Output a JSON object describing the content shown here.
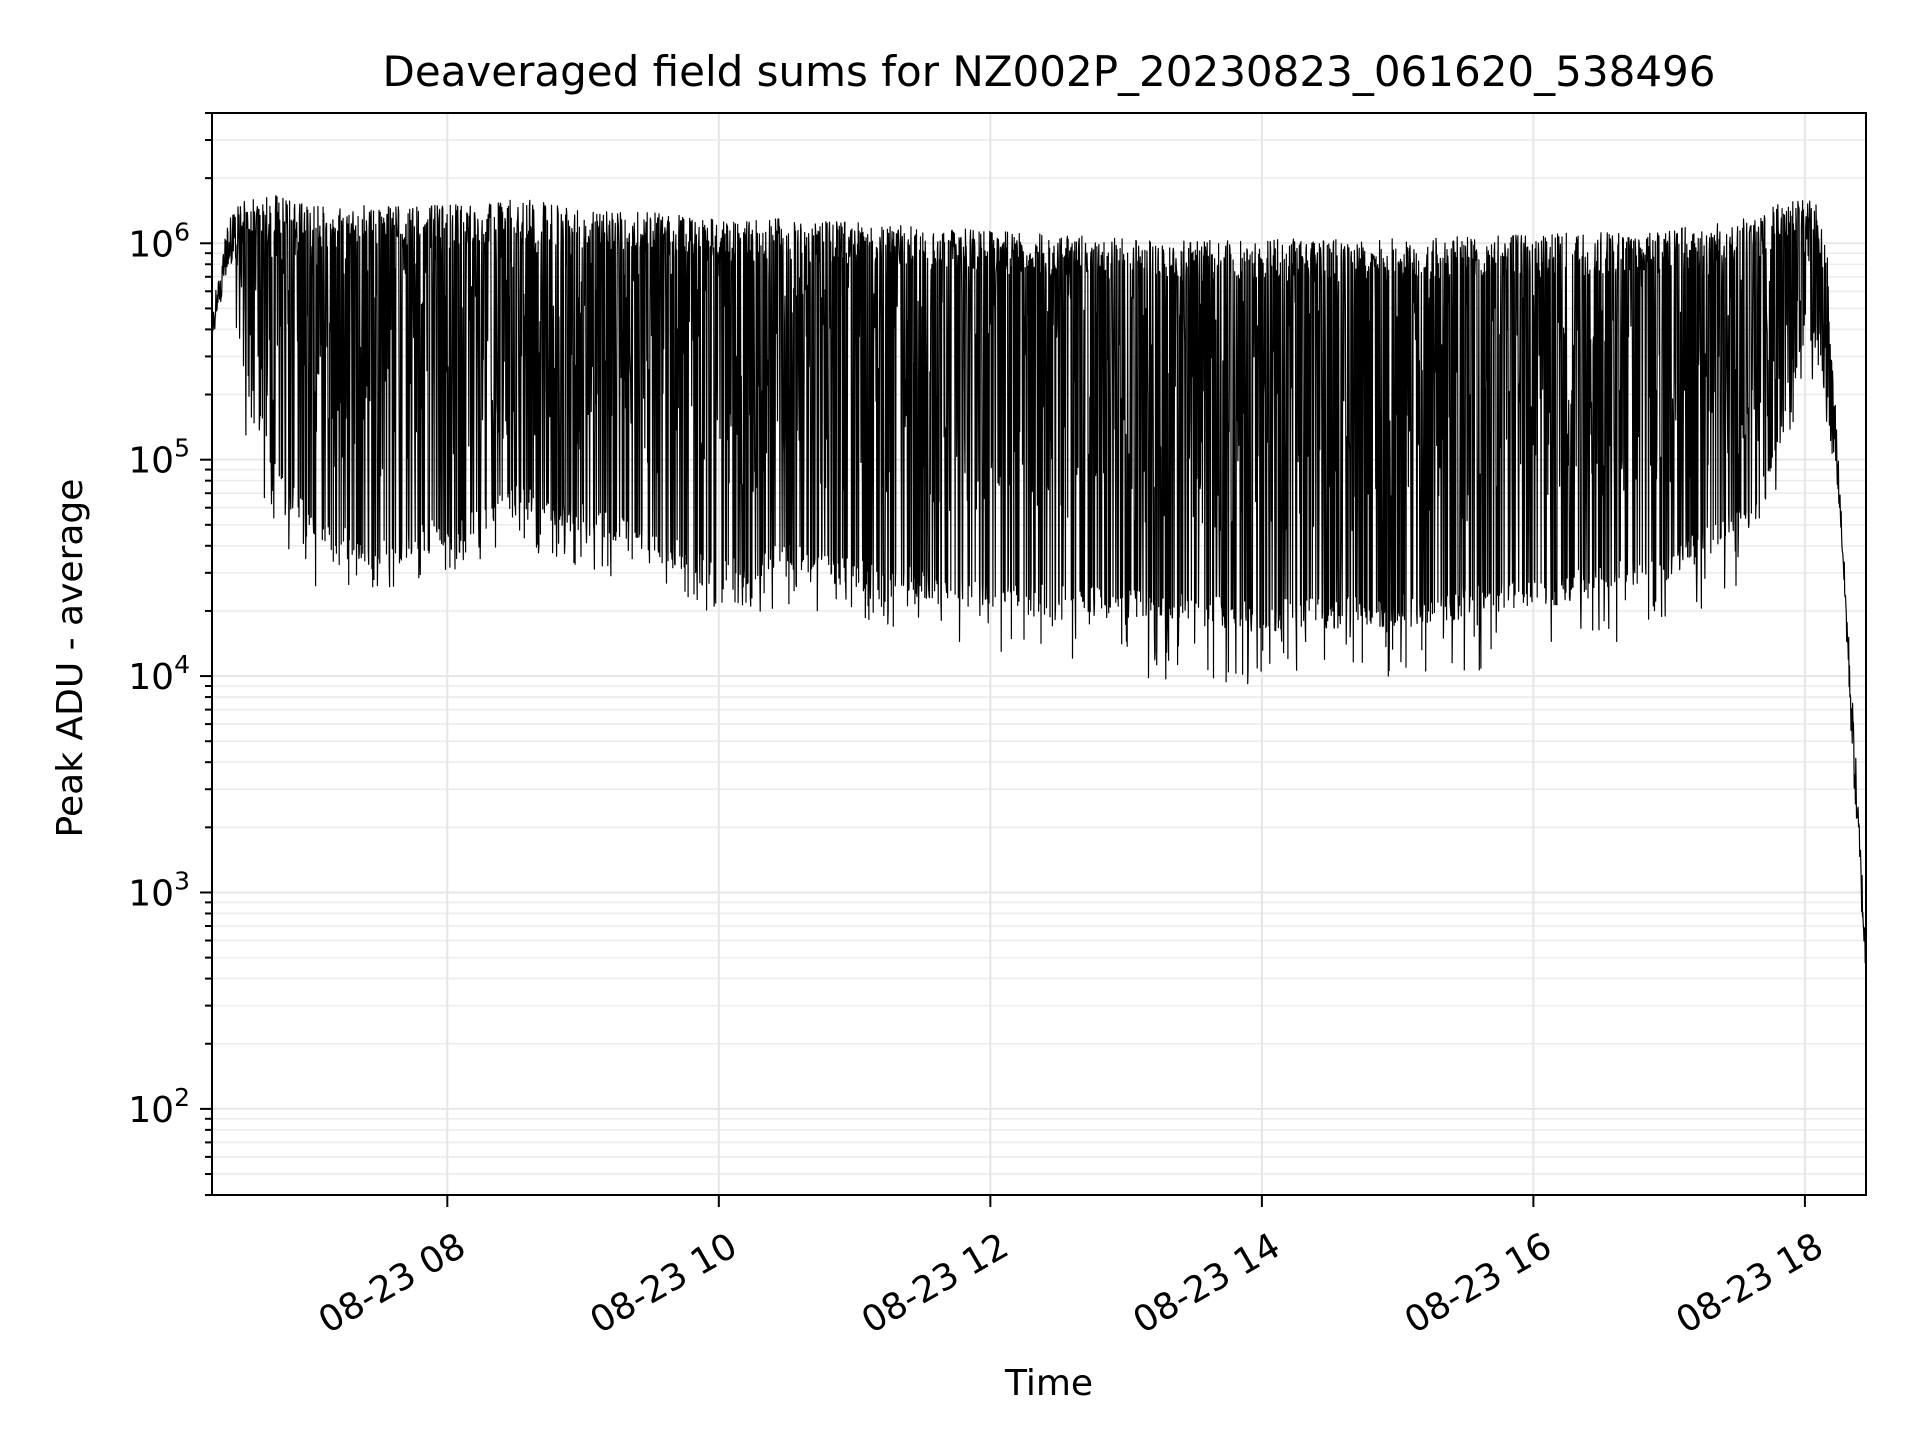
{
  "chart_data": {
    "type": "line",
    "title": "Deaveraged field sums for NZ002P_20230823_061620_538496",
    "xlabel": "Time",
    "ylabel": "Peak ADU - average",
    "xscale": "time",
    "yscale": "log",
    "xlim": [
      "2023-08-23T06:16",
      "2023-08-23T18:27"
    ],
    "ylim": [
      40,
      4000000
    ],
    "x_tick_labels": [
      "08-23 08",
      "08-23 10",
      "08-23 12",
      "08-23 14",
      "08-23 16",
      "08-23 18"
    ],
    "x_tick_values": [
      "2023-08-23T08:00",
      "2023-08-23T10:00",
      "2023-08-23T12:00",
      "2023-08-23T14:00",
      "2023-08-23T16:00",
      "2023-08-23T18:00"
    ],
    "y_tick_values": [
      100,
      1000,
      10000,
      100000,
      1000000
    ],
    "y_tick_labels": [
      {
        "base": "10",
        "exp": "2"
      },
      {
        "base": "10",
        "exp": "3"
      },
      {
        "base": "10",
        "exp": "4"
      },
      {
        "base": "10",
        "exp": "5"
      },
      {
        "base": "10",
        "exp": "6"
      }
    ],
    "grid": true,
    "legend": "none",
    "series": [
      {
        "color": "#000000",
        "envelope": {
          "x": [
            "2023-08-23T06:16",
            "2023-08-23T06:24",
            "2023-08-23T06:30",
            "2023-08-23T06:45",
            "2023-08-23T07:00",
            "2023-08-23T07:30",
            "2023-08-23T08:00",
            "2023-08-23T08:30",
            "2023-08-23T09:00",
            "2023-08-23T09:30",
            "2023-08-23T10:00",
            "2023-08-23T10:30",
            "2023-08-23T11:00",
            "2023-08-23T12:00",
            "2023-08-23T13:00",
            "2023-08-23T14:00",
            "2023-08-23T15:00",
            "2023-08-23T16:00",
            "2023-08-23T17:00",
            "2023-08-23T17:40",
            "2023-08-23T18:00",
            "2023-08-23T18:05",
            "2023-08-23T18:10",
            "2023-08-23T18:16",
            "2023-08-23T18:21",
            "2023-08-23T18:27"
          ],
          "upper": [
            500000,
            1400000,
            1600000,
            1700000,
            1500000,
            1500000,
            1500000,
            1600000,
            1500000,
            1400000,
            1300000,
            1300000,
            1250000,
            1150000,
            1050000,
            1050000,
            1050000,
            1100000,
            1150000,
            1350000,
            1800000,
            1500000,
            900000,
            60000,
            8000,
            600
          ],
          "lower": [
            280000,
            700000,
            200000,
            70000,
            40000,
            30000,
            40000,
            55000,
            45000,
            35000,
            24000,
            30000,
            25000,
            20000,
            18000,
            16000,
            17000,
            20000,
            28000,
            50000,
            400000,
            300000,
            150000,
            40000,
            3000,
            300
          ],
          "minimum": [
            250000,
            350000,
            130000,
            35000,
            25000,
            24000,
            30000,
            40000,
            30000,
            25000,
            19000,
            20000,
            18000,
            13000,
            10000,
            9000,
            10000,
            11000,
            15000,
            30000,
            220000,
            200000,
            100000,
            30000,
            2000,
            200
          ]
        }
      }
    ]
  }
}
